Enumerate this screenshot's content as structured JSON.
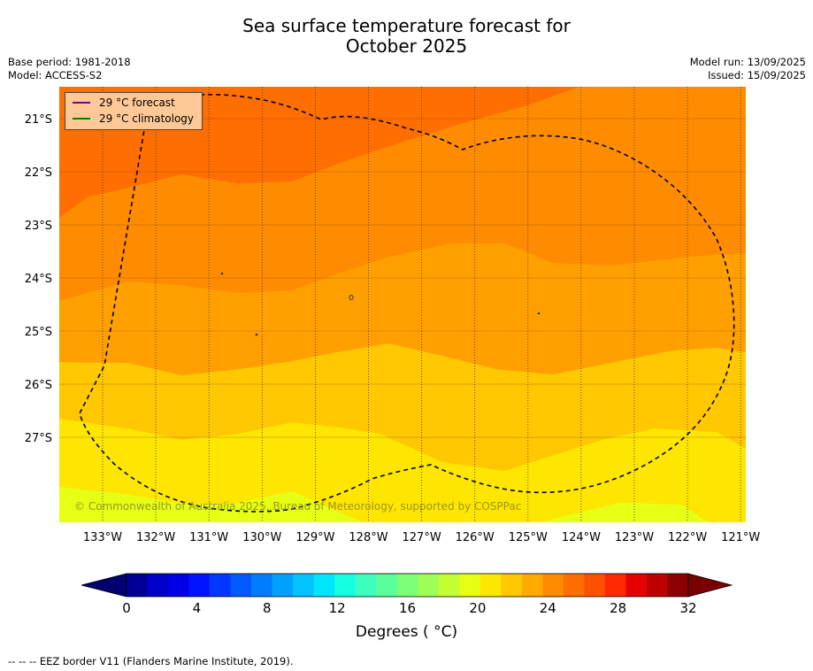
{
  "title_line1": "Sea surface temperature forecast for",
  "title_line2": "October 2025",
  "base_period": "Base period: 1981-2018",
  "model": "Model: ACCESS-S2",
  "model_run": "Model run: 13/09/2025",
  "issued": "Issued: 15/09/2025",
  "legend": [
    {
      "label": "29 °C  forecast",
      "color": "#800080",
      "icon": "line-swatch"
    },
    {
      "label": "29 °C  climatology",
      "color": "#008000",
      "icon": "line-swatch"
    }
  ],
  "copyright": "© Commonwealth of Australia 2025, Bureau of Meteorology, supported by COSPPac",
  "colorbar_label": "Degrees ( °C)",
  "footnote": "--  --  -- EEZ border V11 (Flanders Marine Institute, 2019).",
  "lon_labels": [
    "133°W",
    "132°W",
    "131°W",
    "130°W",
    "129°W",
    "128°W",
    "127°W",
    "126°W",
    "125°W",
    "124°W",
    "123°W",
    "122°W",
    "121°W"
  ],
  "lat_labels": [
    "21°S",
    "22°S",
    "23°S",
    "24°S",
    "25°S",
    "26°S",
    "27°S"
  ],
  "colorbar_ticks": [
    "0",
    "4",
    "8",
    "12",
    "16",
    "20",
    "24",
    "28",
    "32"
  ],
  "colorbar_colors": [
    "#000096",
    "#0000c8",
    "#0000e6",
    "#0014ff",
    "#0037ff",
    "#005aff",
    "#007dff",
    "#00a0ff",
    "#00c3ff",
    "#00e6ff",
    "#14ffe1",
    "#3cffbe",
    "#5aff9b",
    "#7dff78",
    "#a0ff55",
    "#c3ff32",
    "#e6ff14",
    "#ffe600",
    "#ffc800",
    "#ffaa00",
    "#ff8c00",
    "#ff6e00",
    "#ff5000",
    "#ff2800",
    "#e60000",
    "#c00000",
    "#8c0000"
  ],
  "lower_extend_color": "#00006e",
  "upper_extend_color": "#7a0000",
  "band_colors": [
    "#ff6e00",
    "#ff8c00",
    "#ffa000",
    "#ffc800",
    "#ffe600",
    "#e6ff14"
  ],
  "band_values_c": [
    "27-28",
    "26-27",
    "25-26",
    "24-25",
    "23-24",
    "22-23"
  ]
}
